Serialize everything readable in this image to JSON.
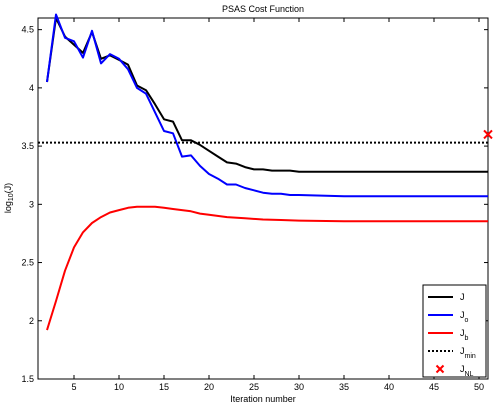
{
  "chart_data": {
    "type": "line",
    "title": "PSAS Cost Function",
    "xlabel": "Iteration number",
    "ylabel": {
      "base": "log",
      "sub": "10",
      "rest": "(J)"
    },
    "xlim": [
      1,
      51
    ],
    "ylim": [
      1.5,
      4.6
    ],
    "xticks": [
      5,
      10,
      15,
      20,
      25,
      30,
      35,
      40,
      45,
      50
    ],
    "yticks": [
      1.5,
      2,
      2.5,
      3,
      3.5,
      4,
      4.5
    ],
    "ytick_labels": [
      "1.5",
      "2",
      "2.5",
      "3",
      "3.5",
      "4",
      "4.5"
    ],
    "grid": false,
    "legend_position": "bottom-right",
    "series": [
      {
        "name": "J",
        "legend_main": "J",
        "legend_sub": "",
        "color": "#000000",
        "style": "solid",
        "x": [
          2,
          3,
          4,
          5,
          6,
          7,
          8,
          9,
          10,
          11,
          12,
          13,
          14,
          15,
          16,
          17,
          18,
          19,
          20,
          21,
          22,
          23,
          24,
          25,
          26,
          27,
          28,
          29,
          30,
          35,
          40,
          45,
          50,
          51
        ],
        "y": [
          4.05,
          4.6,
          4.44,
          4.37,
          4.3,
          4.48,
          4.25,
          4.28,
          4.24,
          4.2,
          4.02,
          3.98,
          3.86,
          3.73,
          3.71,
          3.55,
          3.55,
          3.51,
          3.46,
          3.41,
          3.36,
          3.35,
          3.32,
          3.3,
          3.3,
          3.29,
          3.29,
          3.29,
          3.28,
          3.28,
          3.28,
          3.28,
          3.28,
          3.28
        ]
      },
      {
        "name": "J_o",
        "legend_main": "J",
        "legend_sub": "o",
        "color": "#0000ff",
        "style": "solid",
        "x": [
          2,
          3,
          4,
          5,
          6,
          7,
          8,
          9,
          10,
          11,
          12,
          13,
          14,
          15,
          16,
          17,
          18,
          19,
          20,
          21,
          22,
          23,
          24,
          25,
          26,
          27,
          28,
          29,
          30,
          35,
          40,
          45,
          50,
          51
        ],
        "y": [
          4.05,
          4.63,
          4.43,
          4.4,
          4.26,
          4.49,
          4.21,
          4.29,
          4.25,
          4.16,
          4.0,
          3.95,
          3.79,
          3.63,
          3.61,
          3.41,
          3.42,
          3.33,
          3.26,
          3.22,
          3.17,
          3.17,
          3.14,
          3.12,
          3.1,
          3.09,
          3.09,
          3.08,
          3.08,
          3.07,
          3.07,
          3.07,
          3.07,
          3.07
        ]
      },
      {
        "name": "J_b",
        "legend_main": "J",
        "legend_sub": "b",
        "color": "#ff0000",
        "style": "solid",
        "x": [
          2,
          3,
          4,
          5,
          6,
          7,
          8,
          9,
          10,
          11,
          12,
          13,
          14,
          15,
          16,
          17,
          18,
          19,
          20,
          22,
          24,
          26,
          28,
          30,
          35,
          40,
          45,
          50,
          51
        ],
        "y": [
          1.92,
          2.17,
          2.43,
          2.63,
          2.76,
          2.84,
          2.89,
          2.93,
          2.95,
          2.97,
          2.98,
          2.98,
          2.98,
          2.97,
          2.96,
          2.95,
          2.94,
          2.92,
          2.91,
          2.89,
          2.88,
          2.87,
          2.865,
          2.86,
          2.855,
          2.855,
          2.855,
          2.855,
          2.855
        ]
      },
      {
        "name": "J_min",
        "legend_main": "J",
        "legend_sub": "min",
        "color": "#000000",
        "style": "dotted",
        "x": [
          1,
          51
        ],
        "y": [
          3.53,
          3.53
        ]
      }
    ],
    "points": [
      {
        "name": "J_NL",
        "legend_main": "J",
        "legend_sub": "NL",
        "color": "#ff0000",
        "marker": "x",
        "x": 51,
        "y": 3.6
      }
    ]
  }
}
